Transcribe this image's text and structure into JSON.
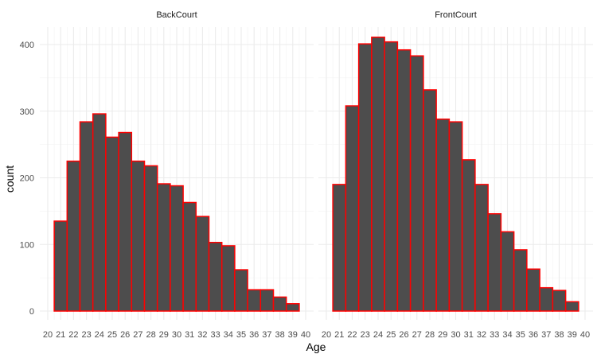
{
  "chart_data": {
    "type": "bar",
    "xlabel": "Age",
    "ylabel": "count",
    "xlim": [
      20,
      40
    ],
    "ylim": [
      0,
      420
    ],
    "x_ticks": [
      20,
      21,
      22,
      23,
      24,
      25,
      26,
      27,
      28,
      29,
      30,
      31,
      32,
      33,
      34,
      35,
      36,
      37,
      38,
      39,
      40
    ],
    "y_ticks": [
      0,
      100,
      200,
      300,
      400
    ],
    "bin_width": 1,
    "fill_color": "#4d4d4d",
    "outline_color": "#ff0000",
    "grid": true,
    "facets": [
      {
        "name": "BackCourt",
        "bins": [
          21,
          22,
          23,
          24,
          25,
          26,
          27,
          28,
          29,
          30,
          31,
          32,
          33,
          34,
          35,
          36,
          37,
          38,
          39
        ],
        "values": [
          135,
          225,
          284,
          296,
          261,
          268,
          225,
          218,
          191,
          188,
          163,
          142,
          103,
          98,
          62,
          32,
          32,
          21,
          11
        ]
      },
      {
        "name": "FrontCourt",
        "bins": [
          21,
          22,
          23,
          24,
          25,
          26,
          27,
          28,
          29,
          30,
          31,
          32,
          33,
          34,
          35,
          36,
          37,
          38,
          39
        ],
        "values": [
          190,
          308,
          401,
          411,
          404,
          392,
          383,
          332,
          288,
          284,
          227,
          190,
          146,
          119,
          92,
          63,
          35,
          31,
          14
        ]
      }
    ]
  }
}
